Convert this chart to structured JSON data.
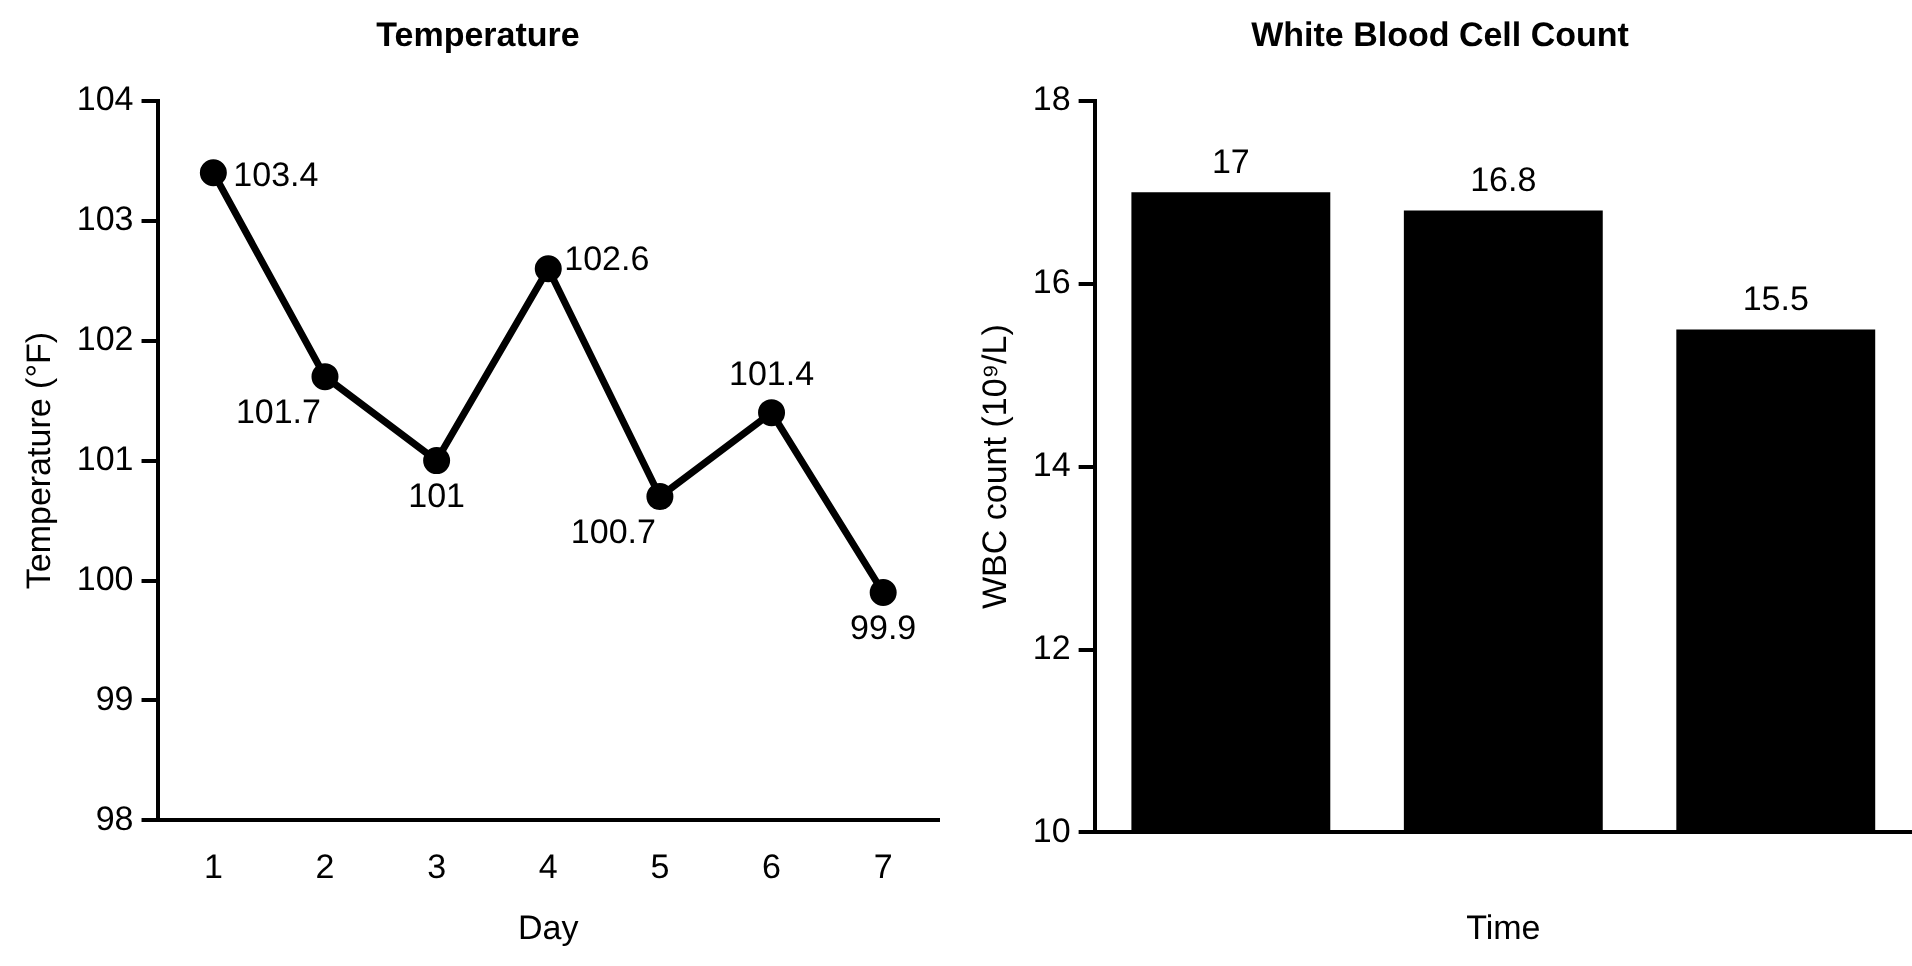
{
  "chart_data": [
    {
      "type": "line",
      "title": "Temperature",
      "xlabel": "Day",
      "ylabel": "Temperature (°F)",
      "x": [
        1,
        2,
        3,
        4,
        5,
        6,
        7
      ],
      "series": [
        {
          "color": "#000000",
          "values": [
            103.4,
            101.7,
            101,
            102.6,
            100.7,
            101.4,
            99.9
          ]
        }
      ],
      "xlim": [
        0.5,
        7.5
      ],
      "xticks": [
        1,
        2,
        3,
        4,
        5,
        6,
        7
      ],
      "ylim": [
        98,
        104
      ],
      "yticks": [
        98,
        99,
        100,
        101,
        102,
        103,
        104
      ],
      "marker": "circle",
      "line_style": "solid",
      "data_labels": true,
      "grid": false,
      "legend": false
    },
    {
      "type": "bar",
      "title": "White Blood Cell Count",
      "xlabel": "Time",
      "ylabel": "WBC count (10⁹/L)",
      "categories": [
        null,
        null,
        null
      ],
      "values": [
        17,
        16.8,
        15.5
      ],
      "color": "#000000",
      "ylim": [
        10,
        18
      ],
      "yticks": [
        10,
        12,
        14,
        16,
        18
      ],
      "data_labels": true,
      "grid": false,
      "legend": false
    }
  ]
}
